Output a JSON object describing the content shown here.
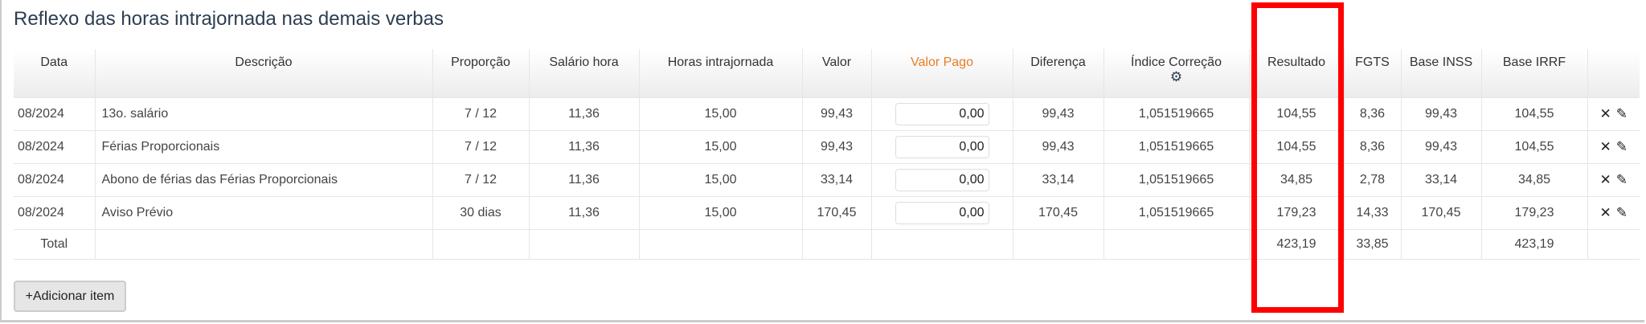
{
  "title": "Reflexo das horas intrajornada nas demais verbas",
  "columns": [
    "Data",
    "Descrição",
    "Proporção",
    "Salário hora",
    "Horas intrajornada",
    "Valor",
    "Valor Pago",
    "Diferença",
    "Índice Correção",
    "Resultado",
    "FGTS",
    "Base INSS",
    "Base IRRF",
    ""
  ],
  "header_icon": "gear-icon",
  "rows": [
    {
      "data": "08/2024",
      "descricao": "13o. salário",
      "proporcao": "7 / 12",
      "salario_hora": "11,36",
      "horas": "15,00",
      "valor": "99,43",
      "valor_pago": "0,00",
      "diferenca": "99,43",
      "indice": "1,051519665",
      "resultado": "104,55",
      "fgts": "8,36",
      "base_inss": "99,43",
      "base_irrf": "104,55"
    },
    {
      "data": "08/2024",
      "descricao": "Férias Proporcionais",
      "proporcao": "7 / 12",
      "salario_hora": "11,36",
      "horas": "15,00",
      "valor": "99,43",
      "valor_pago": "0,00",
      "diferenca": "99,43",
      "indice": "1,051519665",
      "resultado": "104,55",
      "fgts": "8,36",
      "base_inss": "99,43",
      "base_irrf": "104,55"
    },
    {
      "data": "08/2024",
      "descricao": "Abono de férias das Férias Proporcionais",
      "proporcao": "7 / 12",
      "salario_hora": "11,36",
      "horas": "15,00",
      "valor": "33,14",
      "valor_pago": "0,00",
      "diferenca": "33,14",
      "indice": "1,051519665",
      "resultado": "34,85",
      "fgts": "2,78",
      "base_inss": "33,14",
      "base_irrf": "34,85"
    },
    {
      "data": "08/2024",
      "descricao": "Aviso Prévio",
      "proporcao": "30 dias",
      "salario_hora": "11,36",
      "horas": "15,00",
      "valor": "170,45",
      "valor_pago": "0,00",
      "diferenca": "170,45",
      "indice": "1,051519665",
      "resultado": "179,23",
      "fgts": "14,33",
      "base_inss": "170,45",
      "base_irrf": "179,23"
    }
  ],
  "total": {
    "label": "Total",
    "resultado": "423,19",
    "fgts": "33,85",
    "base_irrf": "423,19"
  },
  "actions": {
    "delete": "✕",
    "edit": "✎"
  },
  "add_button": "+Adicionar item",
  "colors": {
    "accent_header": "#e67e22",
    "highlight_box": "#ff0000"
  }
}
